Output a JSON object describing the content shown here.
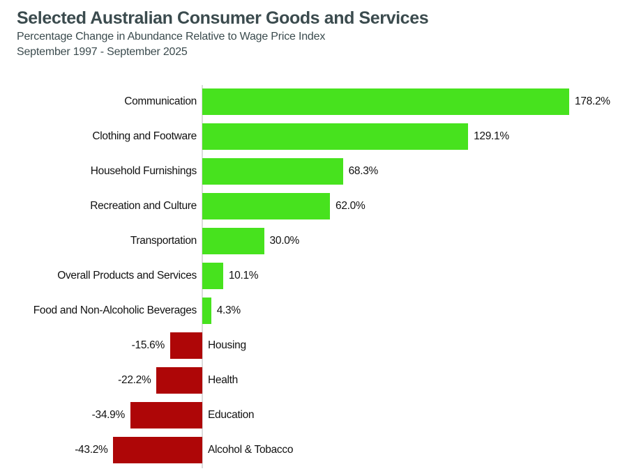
{
  "chart_data": {
    "type": "bar",
    "orientation": "horizontal",
    "title": "Selected Australian Consumer Goods and Services",
    "subtitle": "Percentage Change in Abundance Relative to Wage Price Index",
    "period": "September 1997 - September 2025",
    "categories": [
      "Communication",
      "Clothing and Footware",
      "Household Furnishings",
      "Recreation and Culture",
      "Transportation",
      "Overall Products and Services",
      "Food and Non-Alcoholic Beverages",
      "Housing",
      "Health",
      "Education",
      "Alcohol & Tobacco"
    ],
    "values": [
      178.2,
      129.1,
      68.3,
      62.0,
      30.0,
      10.1,
      4.3,
      -15.6,
      -22.2,
      -34.9,
      -43.2
    ],
    "value_labels": [
      "178.2%",
      "129.1%",
      "68.3%",
      "62.0%",
      "30.0%",
      "10.1%",
      "4.3%",
      "-15.6%",
      "-22.2%",
      "-34.9%",
      "-43.2%"
    ],
    "positive_color": "#47E21E",
    "negative_color": "#AE0607",
    "axis_color": "#DBDBDB",
    "text_color": "#111111",
    "title_color": "#3B4B4E",
    "xlim": [
      -43.2,
      178.2
    ],
    "grid": false,
    "legend": "none"
  }
}
